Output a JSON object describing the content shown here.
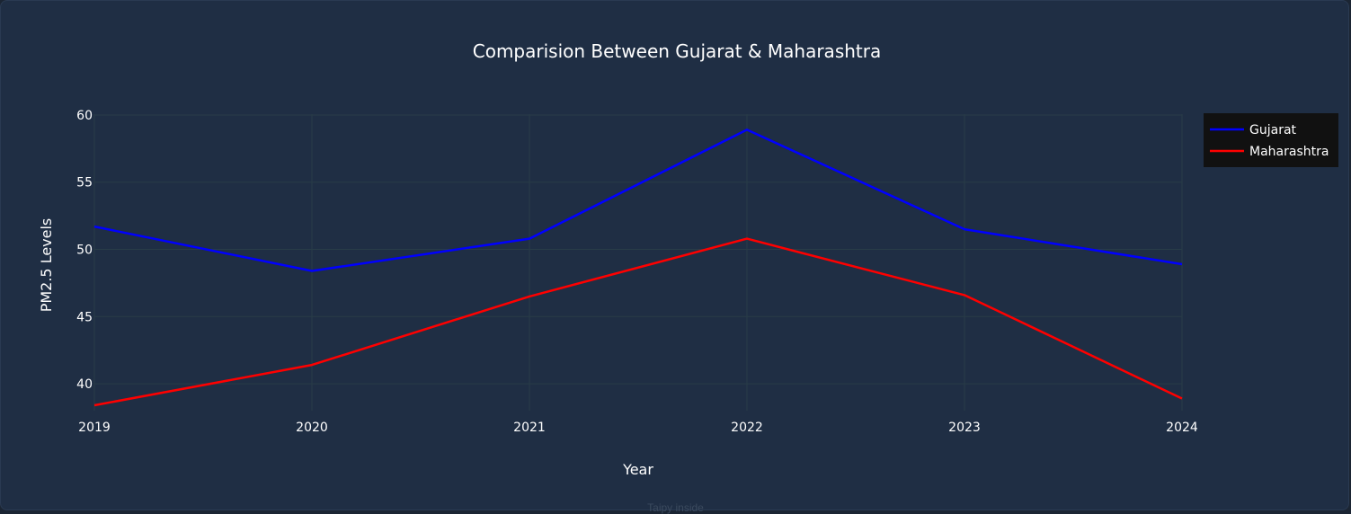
{
  "chart_data": {
    "type": "line",
    "title": "Comparision Between Gujarat & Maharashtra",
    "xlabel": "Year",
    "ylabel": "PM2.5 Levels",
    "x": [
      "2019",
      "2020",
      "2021",
      "2022",
      "2023",
      "2024"
    ],
    "ylim": [
      38,
      61
    ],
    "yticks": [
      40,
      45,
      50,
      55,
      60
    ],
    "grid": true,
    "legend_position": "top-right",
    "series": [
      {
        "name": "Gujarat",
        "color": "#0000ff",
        "values": [
          51.7,
          48.4,
          50.8,
          58.9,
          51.5,
          48.9
        ]
      },
      {
        "name": "Maharashtra",
        "color": "#ff0000",
        "values": [
          38.4,
          41.4,
          46.5,
          50.8,
          46.6,
          38.9
        ]
      }
    ]
  },
  "footer": {
    "text": "Taipy inside"
  },
  "colors": {
    "background": "#1f2e44",
    "grid": "#283c47",
    "text": "#ffffff"
  }
}
